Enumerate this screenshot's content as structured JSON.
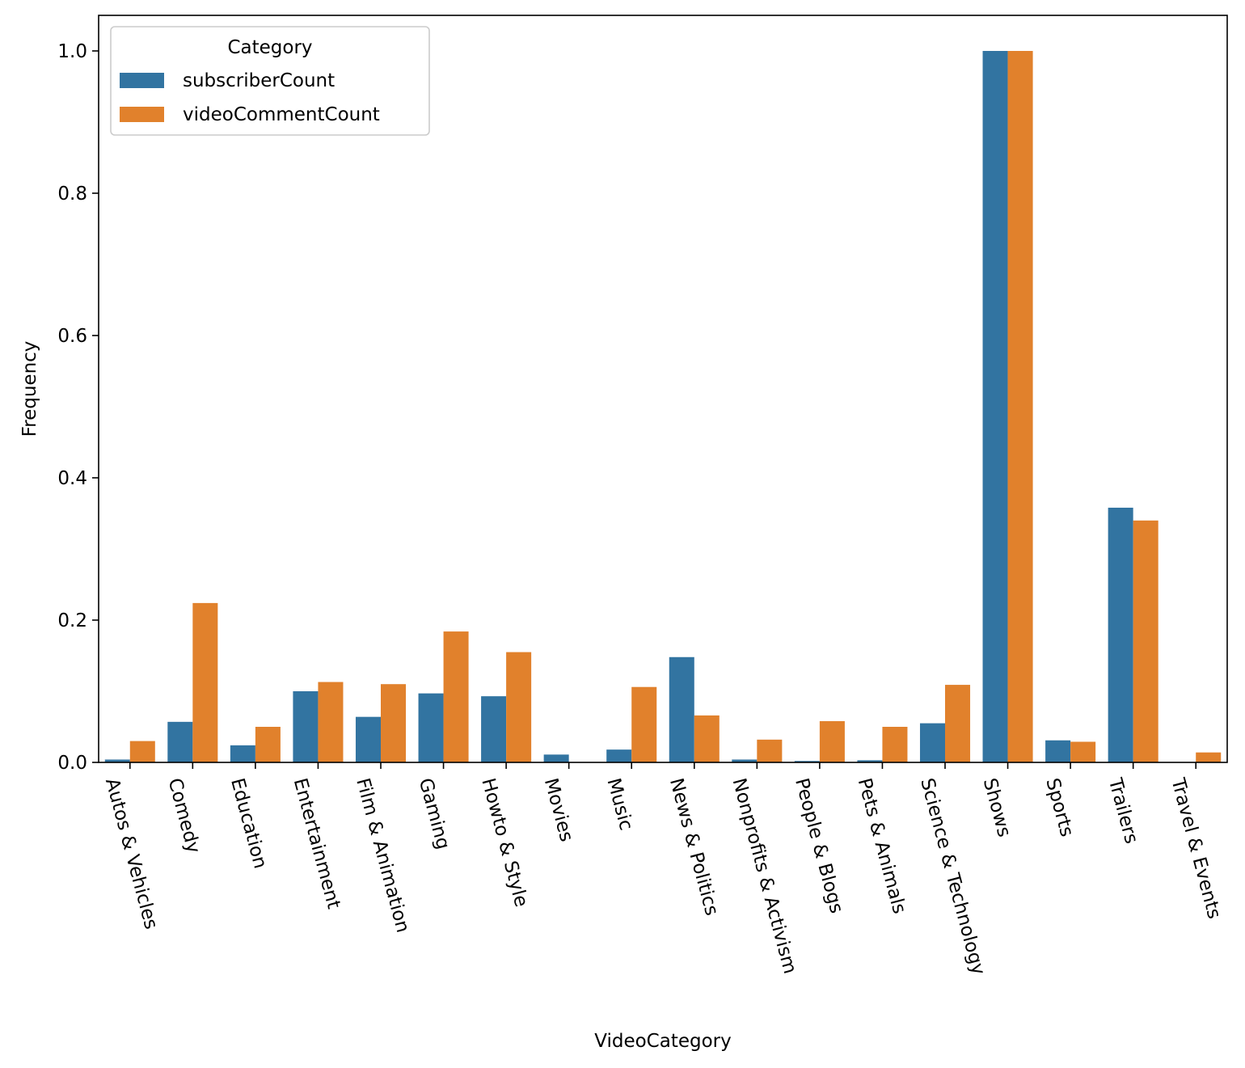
{
  "chart_data": {
    "type": "bar",
    "title": "",
    "xlabel": "VideoCategory",
    "ylabel": "Frequency",
    "ylim": [
      0,
      1.05
    ],
    "yticks": [
      0.0,
      0.2,
      0.4,
      0.6,
      0.8,
      1.0
    ],
    "ytick_labels": [
      "0.0",
      "0.2",
      "0.4",
      "0.6",
      "0.8",
      "1.0"
    ],
    "categories": [
      "Autos & Vehicles",
      "Comedy",
      "Education",
      "Entertainment",
      "Film & Animation",
      "Gaming",
      "Howto & Style",
      "Movies",
      "Music",
      "News & Politics",
      "Nonprofits & Activism",
      "People & Blogs",
      "Pets & Animals",
      "Science & Technology",
      "Shows",
      "Sports",
      "Trailers",
      "Travel & Events"
    ],
    "series": [
      {
        "name": "subscriberCount",
        "color": "#3274a1",
        "values": [
          0.004,
          0.057,
          0.024,
          0.1,
          0.064,
          0.097,
          0.093,
          0.011,
          0.018,
          0.148,
          0.004,
          0.002,
          0.003,
          0.055,
          1.0,
          0.031,
          0.358,
          0.0
        ]
      },
      {
        "name": "videoCommentCount",
        "color": "#e1812c",
        "values": [
          0.03,
          0.224,
          0.05,
          0.113,
          0.11,
          0.184,
          0.155,
          0.0,
          0.106,
          0.066,
          0.032,
          0.058,
          0.05,
          0.109,
          1.0,
          0.029,
          0.34,
          0.014
        ]
      }
    ],
    "legend": {
      "title": "Category",
      "position": "top-left"
    },
    "grid": false
  }
}
